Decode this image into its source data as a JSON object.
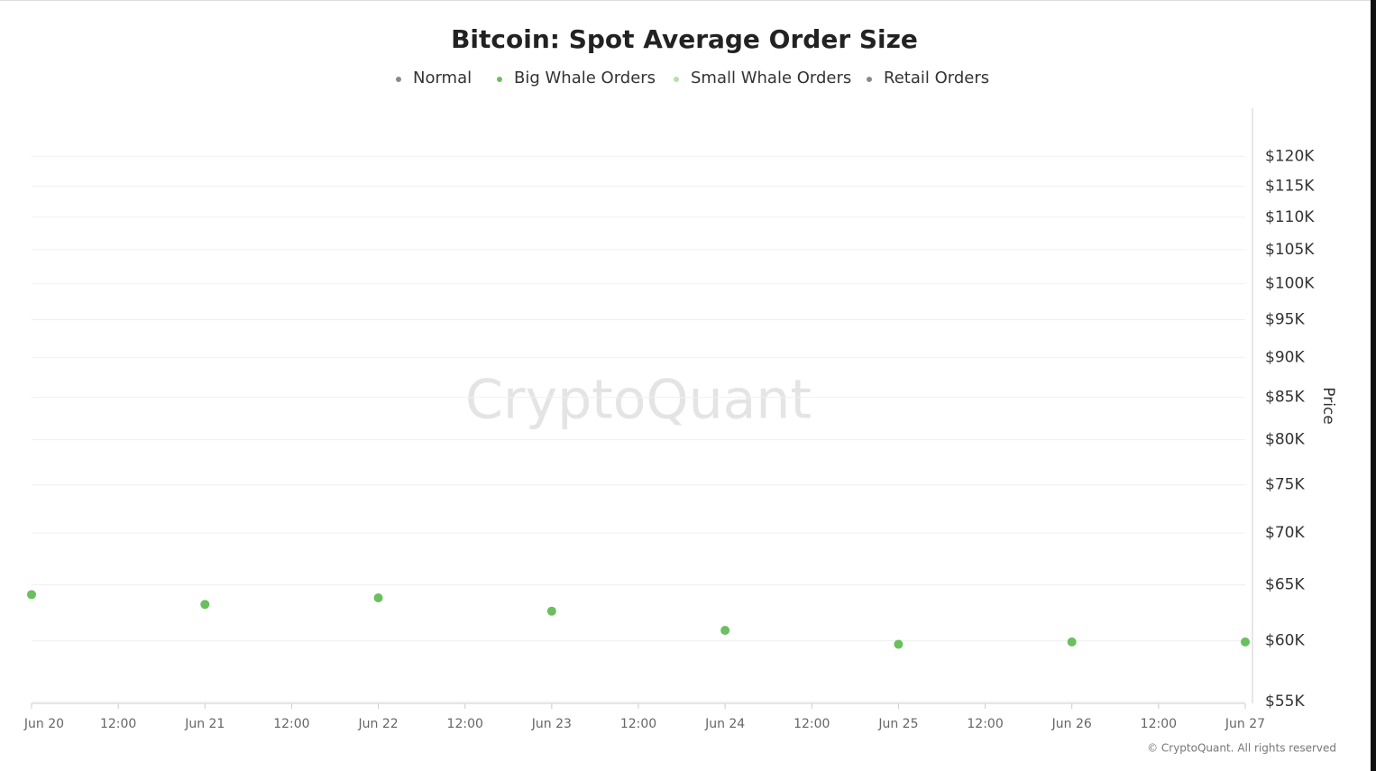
{
  "chart_data": {
    "type": "scatter",
    "title": "Bitcoin: Spot Average Order Size",
    "y_label": "Price",
    "watermark": "CryptoQuant",
    "footer": "© CryptoQuant. All rights reserved",
    "x": [
      "Jun 20",
      "Jun 21",
      "Jun 22",
      "Jun 23",
      "Jun 24",
      "Jun 25",
      "Jun 26",
      "Jun 27"
    ],
    "xticks": [
      "Jun 20",
      "12:00",
      "Jun 21",
      "12:00",
      "Jun 22",
      "12:00",
      "Jun 23",
      "12:00",
      "Jun 24",
      "12:00",
      "Jun 25",
      "12:00",
      "Jun 26",
      "12:00",
      "Jun 27"
    ],
    "log_scale": true,
    "grid": true,
    "legend_position": "top",
    "ylim": [
      55000,
      124000
    ],
    "yticks": [
      {
        "value": 55000,
        "label": "$55K"
      },
      {
        "value": 60000,
        "label": "$60K"
      },
      {
        "value": 65000,
        "label": "$65K"
      },
      {
        "value": 70000,
        "label": "$70K"
      },
      {
        "value": 75000,
        "label": "$75K"
      },
      {
        "value": 80000,
        "label": "$80K"
      },
      {
        "value": 85000,
        "label": "$85K"
      },
      {
        "value": 90000,
        "label": "$90K"
      },
      {
        "value": 95000,
        "label": "$95K"
      },
      {
        "value": 100000,
        "label": "$100K"
      },
      {
        "value": 105000,
        "label": "$105K"
      },
      {
        "value": 110000,
        "label": "$110K"
      },
      {
        "value": 115000,
        "label": "$115K"
      },
      {
        "value": 120000,
        "label": "$120K"
      }
    ],
    "series": [
      {
        "name": "Normal",
        "color": "#8a8a8a",
        "values": [
          null,
          null,
          null,
          null,
          null,
          null,
          null,
          null
        ]
      },
      {
        "name": "Big Whale Orders",
        "color": "#6abf5e",
        "values": [
          64100,
          63200,
          63800,
          62600,
          60900,
          59700,
          59900,
          59900
        ]
      },
      {
        "name": "Small Whale Orders",
        "color": "#b9e0a5",
        "values": [
          null,
          null,
          null,
          null,
          null,
          null,
          null,
          null
        ]
      },
      {
        "name": "Retail Orders",
        "color": "#8a8a8a",
        "values": [
          null,
          null,
          null,
          null,
          null,
          null,
          null,
          null
        ]
      }
    ]
  }
}
